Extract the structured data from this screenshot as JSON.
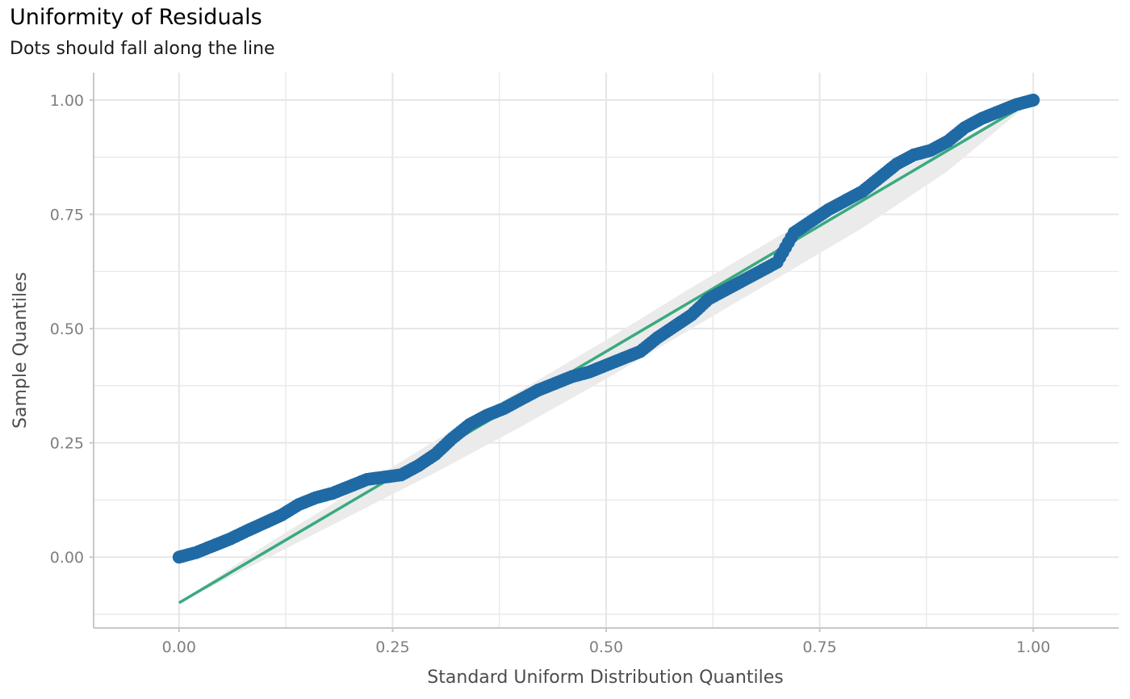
{
  "chart_data": {
    "type": "scatter",
    "title": "Uniformity of Residuals",
    "subtitle": "Dots should fall along the line",
    "xlabel": "Standard Uniform Distribution Quantiles",
    "ylabel": "Sample Quantiles",
    "xlim": [
      -0.1,
      1.1
    ],
    "ylim": [
      -0.155,
      1.06
    ],
    "x_ticks": [
      0.0,
      0.25,
      0.5,
      0.75,
      1.0
    ],
    "x_tick_labels": [
      "0.00",
      "0.25",
      "0.50",
      "0.75",
      "1.00"
    ],
    "y_ticks": [
      0.0,
      0.25,
      0.5,
      0.75,
      1.0
    ],
    "y_tick_labels": [
      "0.00",
      "0.25",
      "0.50",
      "0.75",
      "1.00"
    ],
    "grid": true,
    "colors": {
      "points": "#1f6aa5",
      "line": "#3aaa7e",
      "band": "#ebebeb",
      "grid": "#e6e6e6",
      "axis": "#c8c8c8"
    },
    "reference_line": {
      "x": [
        0.0,
        1.0
      ],
      "y": [
        -0.1,
        1.0
      ]
    },
    "confidence_band": {
      "x": [
        0.0,
        0.1,
        0.2,
        0.3,
        0.4,
        0.5,
        0.6,
        0.7,
        0.8,
        0.9,
        1.0
      ],
      "lower": [
        -0.1,
        -0.005,
        0.09,
        0.185,
        0.285,
        0.39,
        0.5,
        0.61,
        0.72,
        0.845,
        1.0
      ],
      "upper": [
        -0.1,
        0.025,
        0.14,
        0.255,
        0.365,
        0.475,
        0.59,
        0.7,
        0.805,
        0.9,
        1.0
      ]
    },
    "series": [
      {
        "x": [
          0.0,
          0.02,
          0.04,
          0.06,
          0.08,
          0.1,
          0.12,
          0.14,
          0.16,
          0.18,
          0.2,
          0.22,
          0.24,
          0.26,
          0.28,
          0.3,
          0.32,
          0.34,
          0.36,
          0.38,
          0.4,
          0.42,
          0.44,
          0.46,
          0.48,
          0.5,
          0.52,
          0.54,
          0.56,
          0.58,
          0.6,
          0.62,
          0.64,
          0.66,
          0.68,
          0.7,
          0.72,
          0.74,
          0.76,
          0.78,
          0.8,
          0.82,
          0.84,
          0.86,
          0.88,
          0.9,
          0.92,
          0.94,
          0.96,
          0.98,
          1.0
        ],
        "y": [
          0.0,
          0.01,
          0.025,
          0.04,
          0.058,
          0.075,
          0.092,
          0.115,
          0.13,
          0.14,
          0.155,
          0.17,
          0.175,
          0.18,
          0.2,
          0.225,
          0.26,
          0.29,
          0.31,
          0.325,
          0.345,
          0.365,
          0.38,
          0.395,
          0.405,
          0.42,
          0.435,
          0.45,
          0.48,
          0.505,
          0.53,
          0.565,
          0.585,
          0.605,
          0.625,
          0.645,
          0.71,
          0.735,
          0.76,
          0.78,
          0.8,
          0.83,
          0.86,
          0.88,
          0.89,
          0.91,
          0.94,
          0.96,
          0.975,
          0.99,
          1.0
        ]
      }
    ]
  }
}
